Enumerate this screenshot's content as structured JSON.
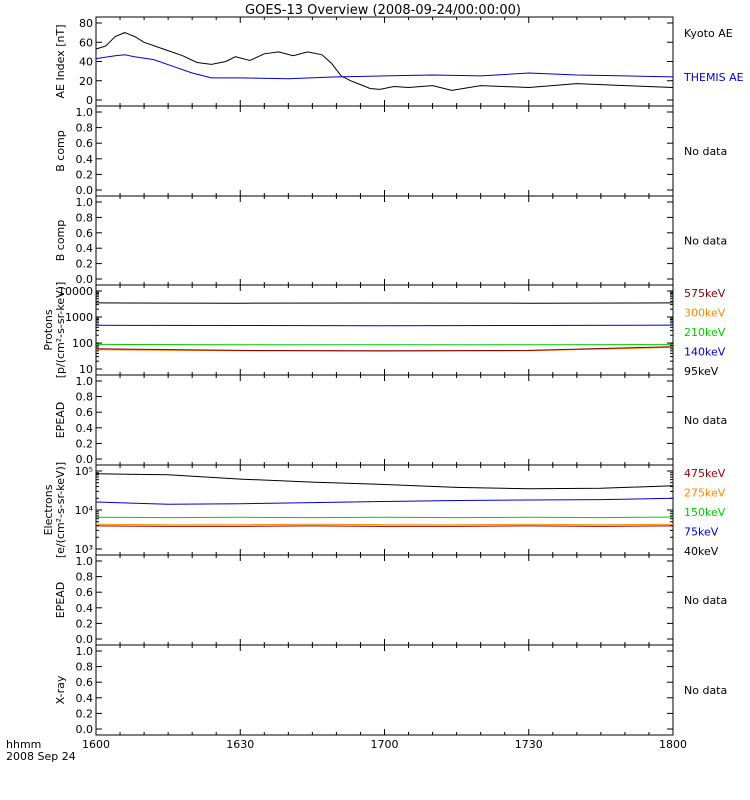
{
  "title": "GOES-13 Overview (2008-09-24/00:00:00)",
  "footer": {
    "line1": "hhmm",
    "line2": "2008 Sep 24"
  },
  "x_ticks": [
    "1600",
    "1630",
    "1700",
    "1730",
    "1800"
  ],
  "chart_data": [
    {
      "type": "line",
      "id": "ae",
      "ylabel": "AE Index [nT]",
      "ylim": [
        0,
        80
      ],
      "yticks": [
        0,
        20,
        40,
        60,
        80
      ],
      "xlim": [
        "16:00",
        "18:00"
      ],
      "series": [
        {
          "name": "Kyoto AE",
          "color": "#000000",
          "x": [
            "16:00",
            "16:02",
            "16:04",
            "16:06",
            "16:08",
            "16:10",
            "16:14",
            "16:18",
            "16:21",
            "16:24",
            "16:27",
            "16:29",
            "16:32",
            "16:35",
            "16:38",
            "16:41",
            "16:44",
            "16:47",
            "16:49",
            "16:51",
            "16:53",
            "16:55",
            "16:57",
            "16:59",
            "17:02",
            "17:05",
            "17:10",
            "17:14",
            "17:20",
            "17:30",
            "17:40",
            "17:50",
            "18:00"
          ],
          "values": [
            53,
            56,
            66,
            70,
            66,
            60,
            53,
            46,
            39,
            37,
            40,
            45,
            41,
            48,
            50,
            46,
            50,
            47,
            38,
            25,
            20,
            16,
            12,
            11,
            14,
            13,
            15,
            10,
            15,
            13,
            17,
            15,
            13
          ]
        },
        {
          "name": "THEMIS AE",
          "color": "#0000cc",
          "x": [
            "16:00",
            "16:04",
            "16:06",
            "16:08",
            "16:12",
            "16:16",
            "16:20",
            "16:24",
            "16:30",
            "16:40",
            "16:50",
            "17:00",
            "17:10",
            "17:20",
            "17:30",
            "17:40",
            "17:50",
            "18:00"
          ],
          "values": [
            43,
            46,
            47,
            45,
            42,
            35,
            28,
            23,
            23,
            22,
            24,
            25,
            26,
            25,
            28,
            26,
            25,
            24
          ]
        }
      ],
      "legend_placement": "right"
    },
    {
      "type": "line",
      "id": "bcomp1",
      "ylabel": "B comp",
      "ylim": [
        0,
        1
      ],
      "yticks": [
        0,
        0.2,
        0.4,
        0.6,
        0.8,
        1.0
      ],
      "yticklabels": [
        "0.0",
        "0.2",
        "0.4",
        "0.6",
        "0.8",
        "1.0"
      ],
      "note": "No data"
    },
    {
      "type": "line",
      "id": "bcomp2",
      "ylabel": "B comp",
      "ylim": [
        0,
        1
      ],
      "yticks": [
        0,
        0.2,
        0.4,
        0.6,
        0.8,
        1.0
      ],
      "yticklabels": [
        "0.0",
        "0.2",
        "0.4",
        "0.6",
        "0.8",
        "1.0"
      ],
      "note": "No data"
    },
    {
      "type": "line",
      "id": "protons",
      "ylabel": "Protons",
      "ylabel2": "[p/(cm²-s-sr-keV)]",
      "yscale": "log",
      "ylim": [
        10,
        10000
      ],
      "yticks": [
        10,
        100,
        1000,
        10000
      ],
      "yticklabels": [
        "10",
        "100",
        "1000",
        "10000"
      ],
      "x": [
        "16:00",
        "16:30",
        "17:00",
        "17:30",
        "18:00"
      ],
      "series": [
        {
          "name": "95keV",
          "color": "#000000",
          "values": [
            3500,
            3400,
            3450,
            3400,
            3500
          ]
        },
        {
          "name": "140keV",
          "color": "#0000cc",
          "values": [
            480,
            470,
            460,
            470,
            490
          ]
        },
        {
          "name": "210keV",
          "color": "#00cc00",
          "values": [
            88,
            86,
            85,
            86,
            87
          ]
        },
        {
          "name": "300keV",
          "color": "#ff8800",
          "values": [
            55,
            50,
            48,
            50,
            68
          ]
        },
        {
          "name": "575keV",
          "color": "#880000",
          "values": [
            60,
            52,
            50,
            52,
            72
          ]
        }
      ],
      "legend_order": [
        "575keV",
        "300keV",
        "210keV",
        "140keV",
        "95keV"
      ],
      "legend_placement": "right"
    },
    {
      "type": "line",
      "id": "epead1",
      "ylabel": "EPEAD",
      "ylim": [
        0,
        1
      ],
      "yticks": [
        0,
        0.2,
        0.4,
        0.6,
        0.8,
        1.0
      ],
      "yticklabels": [
        "0.0",
        "0.2",
        "0.4",
        "0.6",
        "0.8",
        "1.0"
      ],
      "note": "No data"
    },
    {
      "type": "line",
      "id": "electrons",
      "ylabel": "Electrons",
      "ylabel2": "[e/(cm²-s-sr-keV)]",
      "yscale": "log",
      "ylim": [
        1000,
        100000
      ],
      "yticks": [
        1000,
        10000,
        100000
      ],
      "yticklabels": [
        "10³",
        "10⁴",
        "10⁵"
      ],
      "x": [
        "16:00",
        "16:15",
        "16:30",
        "16:45",
        "17:00",
        "17:15",
        "17:30",
        "17:45",
        "18:00"
      ],
      "series": [
        {
          "name": "40keV",
          "color": "#000000",
          "values": [
            85000,
            80000,
            62000,
            52000,
            45000,
            38000,
            35000,
            36000,
            42000
          ]
        },
        {
          "name": "75keV",
          "color": "#0000cc",
          "values": [
            16000,
            14000,
            14500,
            15500,
            16500,
            17500,
            18000,
            18500,
            20000
          ]
        },
        {
          "name": "150keV",
          "color": "#00cc00",
          "values": [
            6500,
            6400,
            6500,
            6400,
            6500,
            6400,
            6500,
            6400,
            6600
          ]
        },
        {
          "name": "275keV",
          "color": "#ff8800",
          "values": [
            4300,
            4200,
            4200,
            4300,
            4200,
            4200,
            4300,
            4200,
            4300
          ]
        },
        {
          "name": "475keV",
          "color": "#880000",
          "values": [
            3900,
            3800,
            3800,
            3900,
            3800,
            3800,
            3900,
            3800,
            3900
          ]
        }
      ],
      "legend_order": [
        "475keV",
        "275keV",
        "150keV",
        "75keV",
        "40keV"
      ],
      "legend_placement": "right"
    },
    {
      "type": "line",
      "id": "epead2",
      "ylabel": "EPEAD",
      "ylim": [
        0,
        1
      ],
      "yticks": [
        0,
        0.2,
        0.4,
        0.6,
        0.8,
        1.0
      ],
      "yticklabels": [
        "0.0",
        "0.2",
        "0.4",
        "0.6",
        "0.8",
        "1.0"
      ],
      "note": "No data"
    },
    {
      "type": "line",
      "id": "xray",
      "ylabel": "X-ray",
      "ylim": [
        0,
        1
      ],
      "yticks": [
        0,
        0.2,
        0.4,
        0.6,
        0.8,
        1.0
      ],
      "yticklabels": [
        "0.0",
        "0.2",
        "0.4",
        "0.6",
        "0.8",
        "1.0"
      ],
      "note": "No data"
    }
  ]
}
